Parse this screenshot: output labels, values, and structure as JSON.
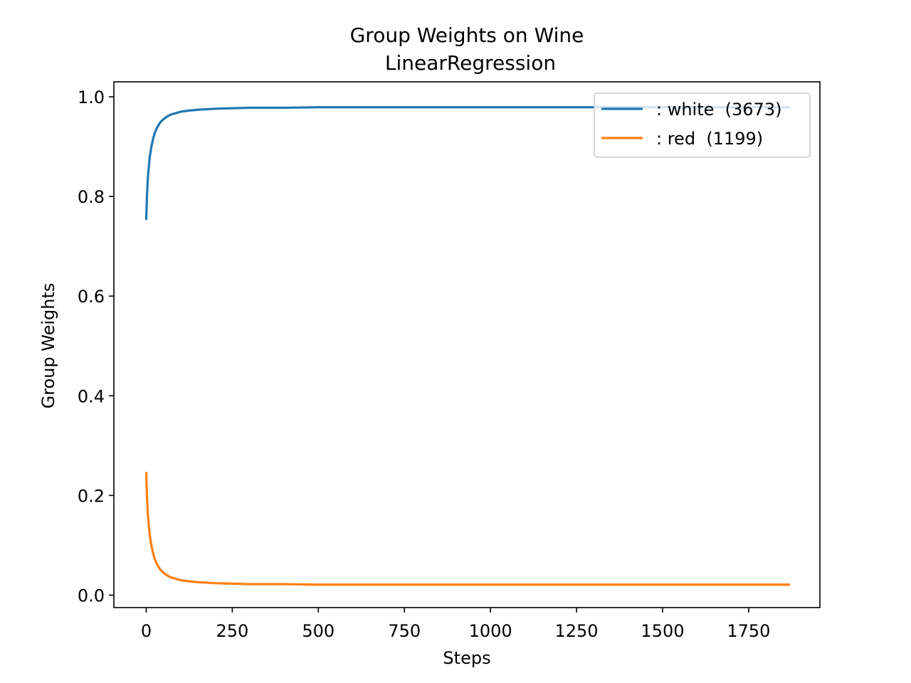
{
  "chart_data": {
    "type": "line",
    "title": "Group Weights on Wine",
    "subtitle": "LinearRegression",
    "xlabel": "Steps",
    "ylabel": "Group Weights",
    "xlim": [
      -94,
      1957
    ],
    "ylim": [
      -0.025,
      1.03
    ],
    "xticks": [
      0,
      250,
      500,
      750,
      1000,
      1250,
      1500,
      1750
    ],
    "yticks": [
      0.0,
      0.2,
      0.4,
      0.6,
      0.8,
      1.0
    ],
    "xtick_labels": [
      "0",
      "250",
      "500",
      "750",
      "1000",
      "1250",
      "1500",
      "1750"
    ],
    "ytick_labels": [
      "0.0",
      "0.2",
      "0.4",
      "0.6",
      "0.8",
      "1.0"
    ],
    "grid": false,
    "legend_position": "top-right",
    "series": [
      {
        "name": ": white  (3673)",
        "color": "#1f77b4",
        "x": [
          0,
          2,
          5,
          10,
          15,
          20,
          25,
          30,
          40,
          50,
          60,
          70,
          80,
          100,
          120,
          150,
          200,
          250,
          300,
          400,
          500,
          750,
          1000,
          1250,
          1500,
          1750,
          1870
        ],
        "y": [
          0.753,
          0.8,
          0.84,
          0.878,
          0.9,
          0.916,
          0.928,
          0.936,
          0.948,
          0.955,
          0.96,
          0.964,
          0.966,
          0.97,
          0.972,
          0.974,
          0.976,
          0.977,
          0.978,
          0.978,
          0.979,
          0.979,
          0.979,
          0.979,
          0.979,
          0.979,
          0.979
        ]
      },
      {
        "name": ": red  (1199)",
        "color": "#ff7f0e",
        "x": [
          0,
          2,
          5,
          10,
          15,
          20,
          25,
          30,
          40,
          50,
          60,
          70,
          80,
          100,
          120,
          150,
          200,
          250,
          300,
          400,
          500,
          750,
          1000,
          1250,
          1500,
          1750,
          1870
        ],
        "y": [
          0.247,
          0.2,
          0.16,
          0.122,
          0.1,
          0.084,
          0.072,
          0.064,
          0.052,
          0.045,
          0.04,
          0.036,
          0.034,
          0.03,
          0.028,
          0.026,
          0.024,
          0.023,
          0.022,
          0.022,
          0.021,
          0.021,
          0.021,
          0.021,
          0.021,
          0.021,
          0.021
        ]
      }
    ]
  }
}
